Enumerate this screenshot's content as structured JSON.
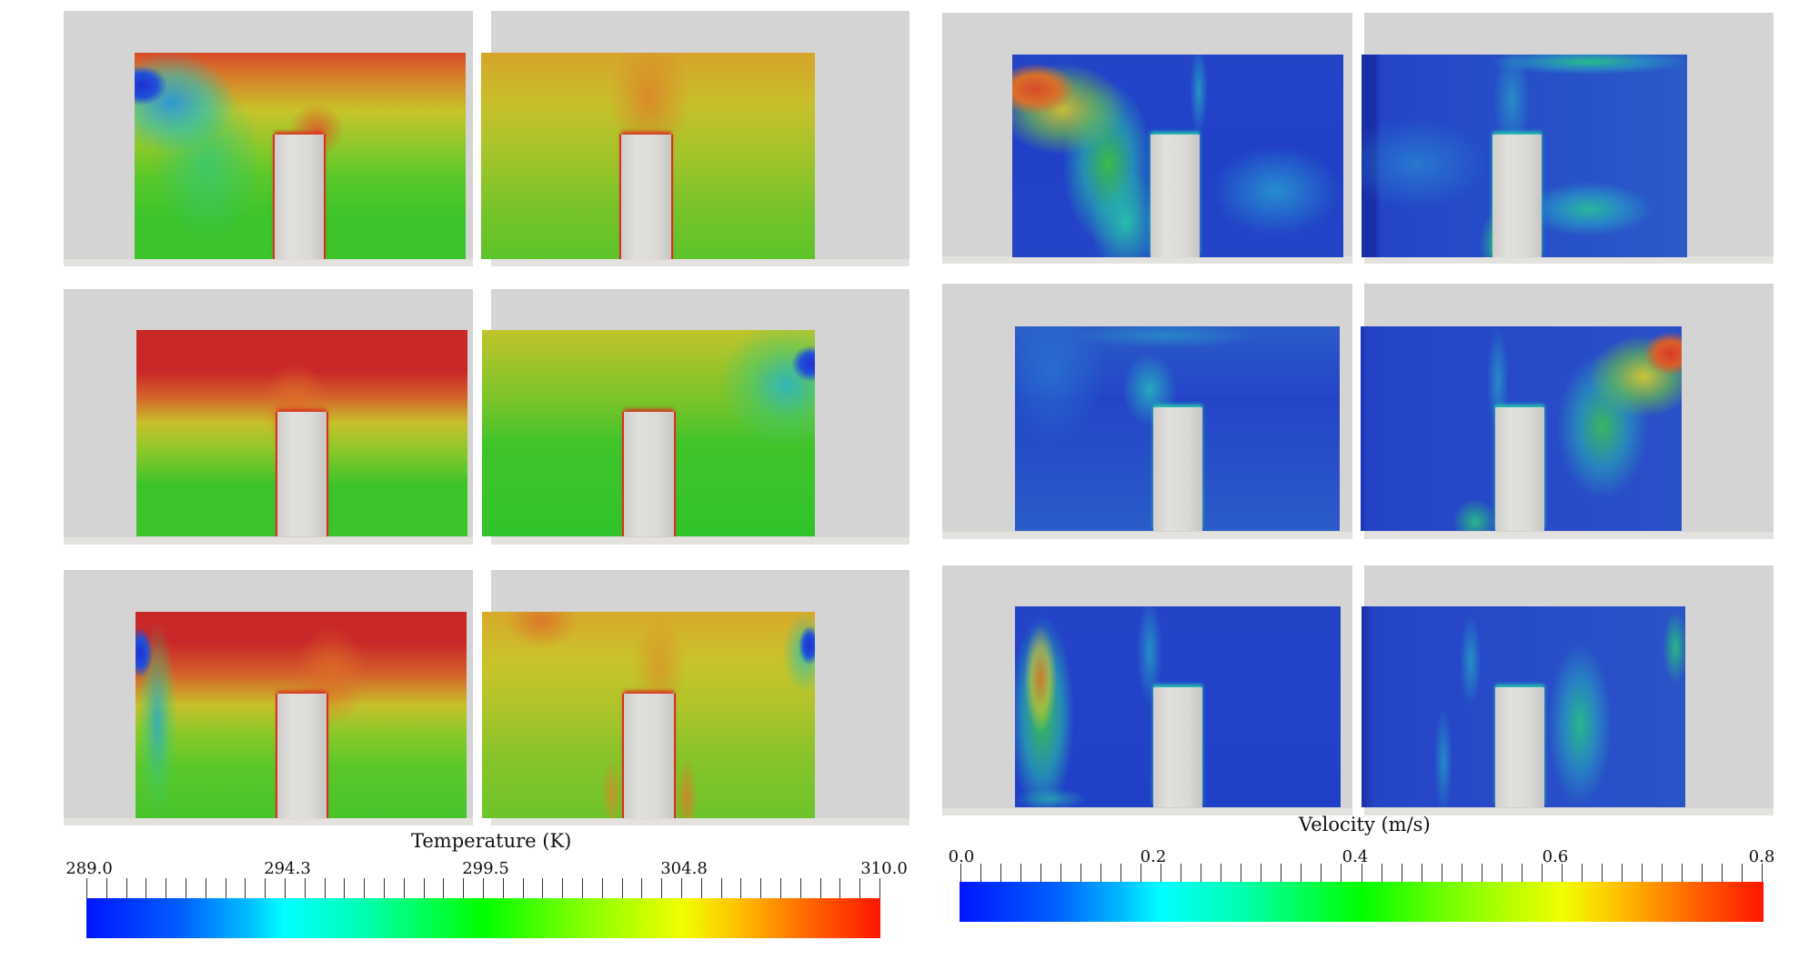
{
  "figure": {
    "temperature": {
      "title": "Temperature (K)",
      "colorbar": {
        "min": 289.0,
        "max": 310.0,
        "tick_labels": [
          "289.0",
          "294.3",
          "299.5",
          "304.8",
          "310.0"
        ],
        "colormap": "rainbow (blue-cyan-green-yellow-red)",
        "colors": [
          "#0015ff",
          "#00ffff",
          "#00ff00",
          "#f0ff00",
          "#ff1500"
        ]
      },
      "panels": [
        {
          "row": 1,
          "side": "left",
          "inlet": "upper-left",
          "description": "Cold jet from upper-left inlet descending; warm stratified top layer"
        },
        {
          "row": 1,
          "side": "right",
          "inlet": "none visible",
          "description": "Mostly yellow-green with warm plume above pillar"
        },
        {
          "row": 2,
          "side": "left",
          "inlet": "none visible",
          "description": "Strong hot stratified layer at top, green lower region"
        },
        {
          "row": 2,
          "side": "right",
          "inlet": "upper-right",
          "description": "Cold jet from upper-right inlet"
        },
        {
          "row": 3,
          "side": "left",
          "inlet": "upper-left",
          "description": "Hot top layer; cold jet along left wall"
        },
        {
          "row": 3,
          "side": "right",
          "inlet": "upper-right",
          "description": "Yellow-orange field; small cold spot at upper-right inlet"
        }
      ]
    },
    "velocity": {
      "title": "Velocity (m/s)",
      "colorbar": {
        "min": 0.0,
        "max": 0.8,
        "tick_labels": [
          "0.0",
          "0.2",
          "0.4",
          "0.6",
          "0.8"
        ],
        "colormap": "rainbow (blue-cyan-green-yellow-red)",
        "colors": [
          "#0015ff",
          "#00ffff",
          "#00ff00",
          "#f0ff00",
          "#ff1500"
        ]
      },
      "panels": [
        {
          "row": 1,
          "side": "left",
          "description": "High-velocity jet from upper-left inlet curving down toward floor"
        },
        {
          "row": 1,
          "side": "right",
          "description": "Low velocity with recirculation bands"
        },
        {
          "row": 2,
          "side": "left",
          "description": "Low velocity everywhere; small plume above pillar"
        },
        {
          "row": 2,
          "side": "right",
          "description": "High-velocity jet from upper-right inlet"
        },
        {
          "row": 3,
          "side": "left",
          "description": "Jet along left wall descending"
        },
        {
          "row": 3,
          "side": "right",
          "description": "Moderate-velocity band right of pillar"
        }
      ]
    }
  },
  "chart_data": [
    {
      "type": "heatmap",
      "title": "Temperature (K)",
      "colorbar_range": [
        289.0,
        310.0
      ],
      "colorbar_ticks": [
        289.0,
        294.3,
        299.5,
        304.8,
        310.0
      ],
      "layout": "3 rows x 2 columns of room cross-sections with a central pillar",
      "legend_position": "bottom"
    },
    {
      "type": "heatmap",
      "title": "Velocity (m/s)",
      "colorbar_range": [
        0.0,
        0.8
      ],
      "colorbar_ticks": [
        0.0,
        0.2,
        0.4,
        0.6,
        0.8
      ],
      "layout": "3 rows x 2 columns of room cross-sections with a central pillar",
      "legend_position": "bottom"
    }
  ]
}
